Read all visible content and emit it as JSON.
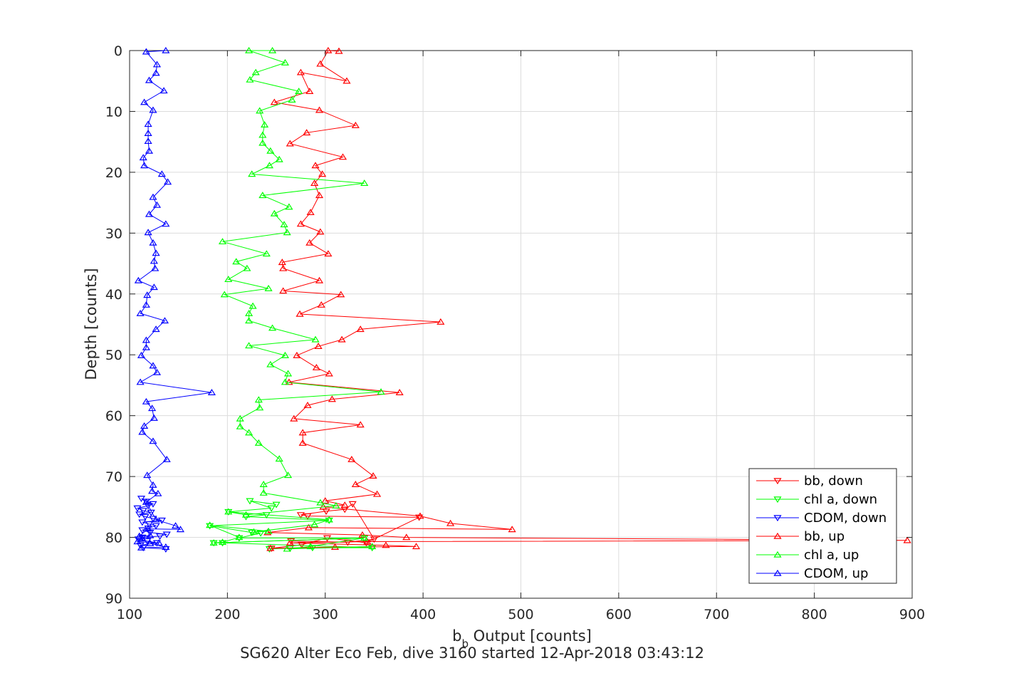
{
  "chart_data": {
    "type": "scatter",
    "title": "SG620 Alter Eco Feb, dive 3160 started 12-Apr-2018 03:43:12",
    "xlabel_main": "b",
    "xlabel_sub": "b",
    "xlabel_rest": " Output [counts]",
    "ylabel": "Depth [counts]",
    "xlim": [
      100,
      900
    ],
    "ylim": [
      0,
      90
    ],
    "y_reversed": true,
    "grid": true,
    "legend_position": "bottom-right",
    "xticks": [
      "100",
      "200",
      "300",
      "400",
      "500",
      "600",
      "700",
      "800",
      "900"
    ],
    "yticks": [
      "0",
      "10",
      "20",
      "30",
      "40",
      "50",
      "60",
      "70",
      "80",
      "90"
    ],
    "series": [
      {
        "name": "bb, down",
        "color": "#ff0000",
        "marker": "triangle-down",
        "x": [
          245,
          276,
          302,
          342,
          396,
          282,
          275,
          301,
          320,
          328,
          350,
          323,
          265
        ],
        "y": [
          81.8,
          81.2,
          80.1,
          80.9,
          76.7,
          76.5,
          76.3,
          75.7,
          75.4,
          74.5,
          80.3,
          80.8,
          80.6
        ],
        "depth_note": "",
        "points": [
          [
            245,
            81.8
          ],
          [
            276,
            81.2
          ],
          [
            302,
            80.1
          ],
          [
            342,
            80.9
          ],
          [
            396,
            76.7
          ],
          [
            282,
            76.5
          ],
          [
            275,
            76.3
          ],
          [
            301,
            75.7
          ],
          [
            320,
            75.4
          ],
          [
            328,
            74.5
          ],
          [
            350,
            80.3
          ],
          [
            323,
            80.8
          ],
          [
            265,
            80.6
          ]
        ]
      },
      {
        "name": "chl a, down",
        "color": "#00ff00",
        "marker": "triangle-down",
        "points": [
          [
            243,
            81.9
          ],
          [
            264,
            81.8
          ],
          [
            287,
            81.7
          ],
          [
            348,
            81.7
          ],
          [
            195,
            80.9
          ],
          [
            186,
            80.9
          ],
          [
            340,
            80.1
          ],
          [
            212,
            80.1
          ],
          [
            234,
            79.3
          ],
          [
            225,
            79.2
          ],
          [
            182,
            78.1
          ],
          [
            304,
            77.2
          ],
          [
            219,
            76.6
          ],
          [
            240,
            76.3
          ],
          [
            201,
            75.8
          ],
          [
            245,
            75.2
          ],
          [
            223,
            74.0
          ],
          [
            250,
            74.6
          ]
        ]
      },
      {
        "name": "CDOM, down",
        "color": "#0000ff",
        "marker": "triangle-down",
        "points": [
          [
            137,
            81.9
          ],
          [
            114,
            81.7
          ],
          [
            111,
            81.3
          ],
          [
            128,
            80.9
          ],
          [
            118,
            80.6
          ],
          [
            109,
            80.3
          ],
          [
            113,
            80.0
          ],
          [
            131,
            79.8
          ],
          [
            138,
            79.5
          ],
          [
            121,
            79.2
          ],
          [
            113,
            78.8
          ],
          [
            119,
            78.5
          ],
          [
            127,
            78.1
          ],
          [
            120,
            77.8
          ],
          [
            113,
            77.5
          ],
          [
            133,
            77.2
          ],
          [
            124,
            76.9
          ],
          [
            116,
            76.6
          ],
          [
            110,
            76.2
          ],
          [
            122,
            75.9
          ],
          [
            114,
            75.6
          ],
          [
            108,
            75.2
          ],
          [
            119,
            74.8
          ],
          [
            124,
            74.5
          ],
          [
            117,
            74.1
          ],
          [
            112,
            73.6
          ]
        ]
      },
      {
        "name": "bb, up",
        "color": "#ff0000",
        "marker": "triangle-up",
        "points": [
          [
            314,
            0.1
          ],
          [
            303,
            0.0
          ],
          [
            295,
            2.2
          ],
          [
            322,
            5.0
          ],
          [
            275,
            3.6
          ],
          [
            284,
            6.7
          ],
          [
            248,
            8.5
          ],
          [
            294,
            9.8
          ],
          [
            331,
            12.3
          ],
          [
            281,
            13.5
          ],
          [
            264,
            15.3
          ],
          [
            318,
            17.5
          ],
          [
            290,
            18.9
          ],
          [
            297,
            20.3
          ],
          [
            289,
            21.8
          ],
          [
            294,
            23.8
          ],
          [
            285,
            26.6
          ],
          [
            275,
            28.5
          ],
          [
            295,
            29.8
          ],
          [
            284,
            31.6
          ],
          [
            303,
            33.4
          ],
          [
            256,
            34.8
          ],
          [
            257,
            35.8
          ],
          [
            294,
            37.8
          ],
          [
            257,
            39.5
          ],
          [
            316,
            40.1
          ],
          [
            296,
            41.8
          ],
          [
            274,
            43.3
          ],
          [
            418,
            44.6
          ],
          [
            336,
            45.8
          ],
          [
            317,
            47.5
          ],
          [
            293,
            48.6
          ],
          [
            271,
            50.1
          ],
          [
            291,
            52.1
          ],
          [
            304,
            53.1
          ],
          [
            263,
            54.5
          ],
          [
            376,
            56.2
          ],
          [
            307,
            57.3
          ],
          [
            282,
            58.3
          ],
          [
            268,
            60.5
          ],
          [
            336,
            61.5
          ],
          [
            277,
            62.8
          ],
          [
            277,
            64.5
          ],
          [
            327,
            67.2
          ],
          [
            349,
            69.9
          ],
          [
            331,
            71.3
          ],
          [
            353,
            72.9
          ],
          [
            300,
            74.0
          ],
          [
            320,
            74.7
          ],
          [
            298,
            75.0
          ],
          [
            397,
            76.5
          ],
          [
            428,
            77.7
          ],
          [
            491,
            78.7
          ],
          [
            283,
            78.4
          ],
          [
            241,
            79.2
          ],
          [
            338,
            79.6
          ],
          [
            383,
            80.0
          ],
          [
            895,
            80.5
          ],
          [
            343,
            80.7
          ],
          [
            264,
            80.9
          ],
          [
            362,
            81.3
          ],
          [
            393,
            81.5
          ],
          [
            310,
            81.6
          ],
          [
            244,
            81.8
          ]
        ]
      },
      {
        "name": "chl a, up",
        "color": "#00ff00",
        "marker": "triangle-up",
        "points": [
          [
            246,
            0.0
          ],
          [
            222,
            0.0
          ],
          [
            259,
            2.0
          ],
          [
            229,
            3.6
          ],
          [
            223,
            4.8
          ],
          [
            273,
            6.7
          ],
          [
            266,
            8.1
          ],
          [
            233,
            9.9
          ],
          [
            238,
            12.2
          ],
          [
            236,
            13.9
          ],
          [
            236,
            15.2
          ],
          [
            244,
            16.5
          ],
          [
            253,
            17.9
          ],
          [
            243,
            18.9
          ],
          [
            225,
            20.3
          ],
          [
            340,
            21.8
          ],
          [
            236,
            23.8
          ],
          [
            263,
            25.7
          ],
          [
            248,
            26.8
          ],
          [
            258,
            28.6
          ],
          [
            261,
            29.9
          ],
          [
            195,
            31.4
          ],
          [
            240,
            33.4
          ],
          [
            209,
            34.7
          ],
          [
            220,
            35.8
          ],
          [
            201,
            37.6
          ],
          [
            242,
            39.1
          ],
          [
            197,
            40.1
          ],
          [
            226,
            42.0
          ],
          [
            222,
            43.2
          ],
          [
            222,
            44.4
          ],
          [
            246,
            45.6
          ],
          [
            290,
            47.5
          ],
          [
            222,
            48.5
          ],
          [
            259,
            50.1
          ],
          [
            244,
            51.6
          ],
          [
            262,
            53.1
          ],
          [
            259,
            54.5
          ],
          [
            357,
            56.1
          ],
          [
            232,
            57.4
          ],
          [
            233,
            58.7
          ],
          [
            213,
            60.5
          ],
          [
            213,
            61.8
          ],
          [
            222,
            62.8
          ],
          [
            232,
            64.5
          ],
          [
            253,
            67.1
          ],
          [
            262,
            69.8
          ],
          [
            237,
            71.3
          ],
          [
            237,
            72.7
          ],
          [
            295,
            74.3
          ],
          [
            311,
            74.8
          ],
          [
            219,
            76.3
          ],
          [
            201,
            75.8
          ],
          [
            304,
            77.1
          ],
          [
            289,
            77.9
          ],
          [
            227,
            79.1
          ],
          [
            242,
            79.0
          ],
          [
            182,
            78.0
          ],
          [
            212,
            80.0
          ],
          [
            195,
            80.8
          ],
          [
            186,
            80.9
          ],
          [
            340,
            80.1
          ],
          [
            285,
            81.5
          ],
          [
            261,
            81.9
          ],
          [
            348,
            81.5
          ]
        ]
      },
      {
        "name": "CDOM, up",
        "color": "#0000ff",
        "marker": "triangle-up",
        "points": [
          [
            137,
            0.0
          ],
          [
            117,
            0.2
          ],
          [
            128,
            2.3
          ],
          [
            127,
            3.7
          ],
          [
            120,
            4.9
          ],
          [
            135,
            6.6
          ],
          [
            115,
            8.5
          ],
          [
            124,
            9.8
          ],
          [
            119,
            12.1
          ],
          [
            119,
            13.6
          ],
          [
            119,
            14.9
          ],
          [
            120,
            16.5
          ],
          [
            114,
            17.6
          ],
          [
            115,
            18.9
          ],
          [
            133,
            20.3
          ],
          [
            139,
            21.6
          ],
          [
            124,
            24.1
          ],
          [
            128,
            25.4
          ],
          [
            120,
            26.9
          ],
          [
            137,
            28.5
          ],
          [
            119,
            29.9
          ],
          [
            124,
            31.6
          ],
          [
            127,
            33.3
          ],
          [
            125,
            34.6
          ],
          [
            126,
            35.8
          ],
          [
            109,
            37.8
          ],
          [
            125,
            38.9
          ],
          [
            118,
            40.2
          ],
          [
            117,
            41.8
          ],
          [
            111,
            43.2
          ],
          [
            136,
            44.4
          ],
          [
            127,
            45.8
          ],
          [
            117,
            47.6
          ],
          [
            117,
            48.8
          ],
          [
            112,
            50.1
          ],
          [
            124,
            51.8
          ],
          [
            128,
            52.9
          ],
          [
            111,
            54.5
          ],
          [
            184,
            56.2
          ],
          [
            117,
            57.7
          ],
          [
            123,
            58.8
          ],
          [
            125,
            60.4
          ],
          [
            115,
            61.7
          ],
          [
            113,
            62.7
          ],
          [
            124,
            64.2
          ],
          [
            138,
            67.2
          ],
          [
            118,
            69.8
          ],
          [
            124,
            71.4
          ],
          [
            123,
            72.4
          ],
          [
            129,
            72.8
          ],
          [
            117,
            74.2
          ],
          [
            127,
            77.1
          ],
          [
            147,
            78.1
          ],
          [
            152,
            78.7
          ],
          [
            119,
            78.6
          ],
          [
            110,
            79.8
          ],
          [
            121,
            79.7
          ],
          [
            113,
            80.2
          ],
          [
            108,
            80.7
          ],
          [
            130,
            80.9
          ],
          [
            121,
            81.0
          ],
          [
            137,
            81.6
          ],
          [
            112,
            81.7
          ]
        ]
      }
    ]
  }
}
